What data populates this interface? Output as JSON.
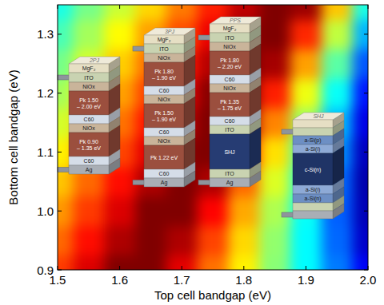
{
  "chart_data": {
    "type": "heatmap",
    "xlabel": "Top cell bandgap (eV)",
    "ylabel": "Bottom cell bandgap (eV)",
    "x": [
      1.5,
      1.55,
      1.6,
      1.65,
      1.7,
      1.75,
      1.8,
      1.85,
      1.9,
      1.95,
      2.0
    ],
    "y": [
      0.9,
      0.95,
      1.0,
      1.05,
      1.1,
      1.15,
      1.2,
      1.25,
      1.3,
      1.35
    ],
    "values": [
      [
        30.0,
        31.0,
        32.0,
        32.0,
        30.9,
        29.4,
        28.0,
        26.6,
        25.1,
        23.7,
        22.3
      ],
      [
        29.5,
        30.5,
        31.5,
        32.0,
        31.5,
        29.9,
        28.3,
        26.7,
        25.1,
        23.5,
        21.8
      ],
      [
        29.0,
        30.0,
        31.0,
        32.0,
        32.0,
        30.6,
        28.8,
        27.0,
        25.2,
        23.4,
        21.6
      ],
      [
        28.5,
        29.5,
        30.5,
        31.5,
        32.0,
        31.5,
        29.5,
        27.5,
        25.5,
        23.5,
        21.5
      ],
      [
        28.0,
        29.0,
        29.9,
        30.9,
        31.9,
        32.0,
        30.4,
        28.2,
        26.0,
        23.9,
        21.7
      ],
      [
        27.4,
        28.4,
        29.4,
        30.4,
        31.4,
        32.0,
        31.6,
        29.2,
        26.8,
        24.4,
        22.1
      ],
      [
        26.9,
        27.9,
        28.9,
        29.9,
        30.9,
        31.9,
        32.0,
        30.3,
        27.7,
        25.2,
        22.6
      ],
      [
        26.4,
        27.4,
        28.4,
        29.4,
        30.4,
        31.4,
        32.0,
        31.6,
        28.9,
        26.1,
        23.3
      ],
      [
        25.9,
        26.9,
        27.9,
        28.9,
        29.8,
        30.8,
        31.8,
        32.0,
        30.2,
        27.2,
        24.3
      ],
      [
        25.4,
        26.4,
        27.3,
        28.3,
        29.3,
        30.3,
        31.3,
        32.0,
        31.7,
        28.5,
        25.4
      ]
    ],
    "color_range": [
      21,
      32
    ],
    "xlim": [
      1.5,
      2.0
    ],
    "ylim": [
      0.9,
      1.35
    ],
    "xticks": [
      1.5,
      1.6,
      1.7,
      1.8,
      1.9,
      {
        "value": 2.0,
        "label": "2.0"
      }
    ],
    "yticks": [
      0.9,
      {
        "value": 1.0,
        "label": "1.0"
      },
      1.1,
      1.2,
      1.3
    ],
    "grid": false,
    "devices": [
      {
        "label": "2PJ",
        "layers": [
          {
            "label": "MgF₂",
            "color": "#e6dfc4"
          },
          {
            "label": "ITO",
            "color": "#c9d3b1"
          },
          {
            "label": "NiOx",
            "color": "#c9b49a"
          },
          {
            "label": "Pk 1.50 – 2.00 eV",
            "color": "#9b4f3e"
          },
          {
            "label": "C60",
            "color": "#d5dde8"
          },
          {
            "label": "NiOx",
            "color": "#c9b49a"
          },
          {
            "label": "Pk 0.90 – 1.35 eV",
            "color": "#9b4f3e"
          },
          {
            "label": "C60",
            "color": "#d5dde8"
          },
          {
            "label": "Ag",
            "color": "#a9aeb5"
          }
        ]
      },
      {
        "label": "3PJ",
        "layers": [
          {
            "label": "MgF₂",
            "color": "#e6dfc4"
          },
          {
            "label": "ITO",
            "color": "#c9d3b1"
          },
          {
            "label": "NiOx",
            "color": "#c9b49a"
          },
          {
            "label": "Pk 1.80 – 1.90 eV",
            "color": "#9b4f3e"
          },
          {
            "label": "C60",
            "color": "#d5dde8"
          },
          {
            "label": "NiOx",
            "color": "#c9b49a"
          },
          {
            "label": "Pk 1.50 – 1.90 eV",
            "color": "#9b4f3e"
          },
          {
            "label": "C60",
            "color": "#d5dde8"
          },
          {
            "label": "NiOx",
            "color": "#c9b49a"
          },
          {
            "label": "Pk 1.22 eV",
            "color": "#9b4f3e"
          },
          {
            "label": "C60",
            "color": "#d5dde8"
          },
          {
            "label": "Ag",
            "color": "#a9aeb5"
          }
        ]
      },
      {
        "label": "PPS",
        "layers": [
          {
            "label": "MgF₂",
            "color": "#e6dfc4"
          },
          {
            "label": "ITO",
            "color": "#c9d3b1"
          },
          {
            "label": "NiOx",
            "color": "#c9b49a"
          },
          {
            "label": "Pk 1.80 – 2.20 eV",
            "color": "#9b4f3e"
          },
          {
            "label": "C60",
            "color": "#d5dde8"
          },
          {
            "label": "NiOx",
            "color": "#c9b49a"
          },
          {
            "label": "Pk 1.35 – 1.75 eV",
            "color": "#9b4f3e"
          },
          {
            "label": "C60",
            "color": "#d5dde8"
          },
          {
            "label": "ITO",
            "color": "#c9d3b1"
          },
          {
            "label": "SHJ",
            "color": "#263c73"
          },
          {
            "label": "ITO",
            "color": "#c9d3b1"
          },
          {
            "label": "Ag",
            "color": "#a9aeb5"
          }
        ]
      },
      {
        "label": "SHJ",
        "layers": [
          {
            "color": "#e6dfc4"
          },
          {
            "color": "#c9d3b1"
          },
          {
            "label": "a-Si(p)",
            "color": "#6d8fc4"
          },
          {
            "label": "a-Si(i)",
            "color": "#8eaad6"
          },
          {
            "label": "c-Si(n)",
            "color": "#1f3466"
          },
          {
            "label": "a-Si(i)",
            "color": "#8eaad6"
          },
          {
            "label": "a-Si(n)",
            "color": "#6d8fc4"
          },
          {
            "color": "#c9d3b1"
          },
          {
            "color": "#a9aeb5"
          }
        ]
      }
    ]
  }
}
